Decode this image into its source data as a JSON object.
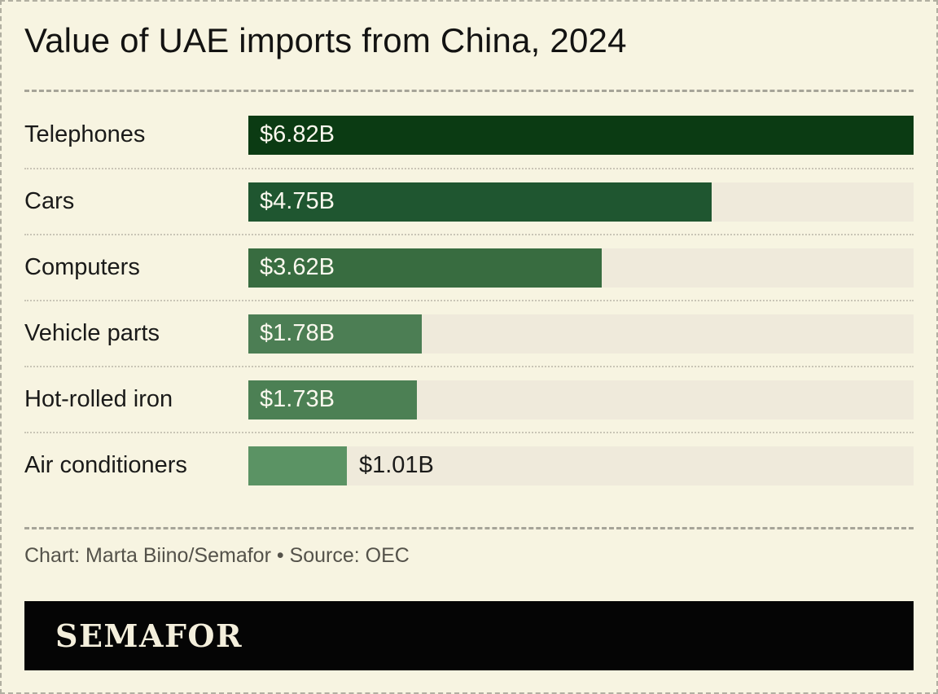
{
  "title": "Value of UAE imports from China, 2024",
  "chart_data": {
    "type": "bar",
    "orientation": "horizontal",
    "title": "Value of UAE imports from China, 2024",
    "xlabel": "",
    "ylabel": "",
    "max_value": 6.82,
    "value_unit": "billion USD",
    "grid": false,
    "legend": false,
    "track_color": "#efeadb",
    "categories": [
      "Telephones",
      "Cars",
      "Computers",
      "Vehicle parts",
      "Hot-rolled iron",
      "Air conditioners"
    ],
    "values": [
      6.82,
      4.75,
      3.62,
      1.78,
      1.73,
      1.01
    ],
    "items": [
      {
        "category": "Telephones",
        "value": 6.82,
        "label": "$6.82B",
        "color": "#0b3b13",
        "label_position": "inside"
      },
      {
        "category": "Cars",
        "value": 4.75,
        "label": "$4.75B",
        "color": "#1f5630",
        "label_position": "inside"
      },
      {
        "category": "Computers",
        "value": 3.62,
        "label": "$3.62B",
        "color": "#386c40",
        "label_position": "inside"
      },
      {
        "category": "Vehicle parts",
        "value": 1.78,
        "label": "$1.78B",
        "color": "#4c7e54",
        "label_position": "inside"
      },
      {
        "category": "Hot-rolled iron",
        "value": 1.73,
        "label": "$1.73B",
        "color": "#4c8054",
        "label_position": "inside"
      },
      {
        "category": "Air conditioners",
        "value": 1.01,
        "label": "$1.01B",
        "color": "#5b9364",
        "label_position": "outside"
      }
    ]
  },
  "footer": {
    "credit": "Chart: Marta Biino/Semafor • Source: OEC"
  },
  "logo": {
    "text": "SEMAFOR",
    "bar_color": "#050505",
    "text_color": "#f4efdc"
  },
  "colors": {
    "background": "#f7f4e1",
    "dashed_rule": "#a6a498",
    "dotted_rule": "#c9c5b6",
    "outer_border": "#b1afa1",
    "category_text": "#1a1a19",
    "value_text_inside": "#faf8ee",
    "value_text_outside": "#1a1a19"
  }
}
